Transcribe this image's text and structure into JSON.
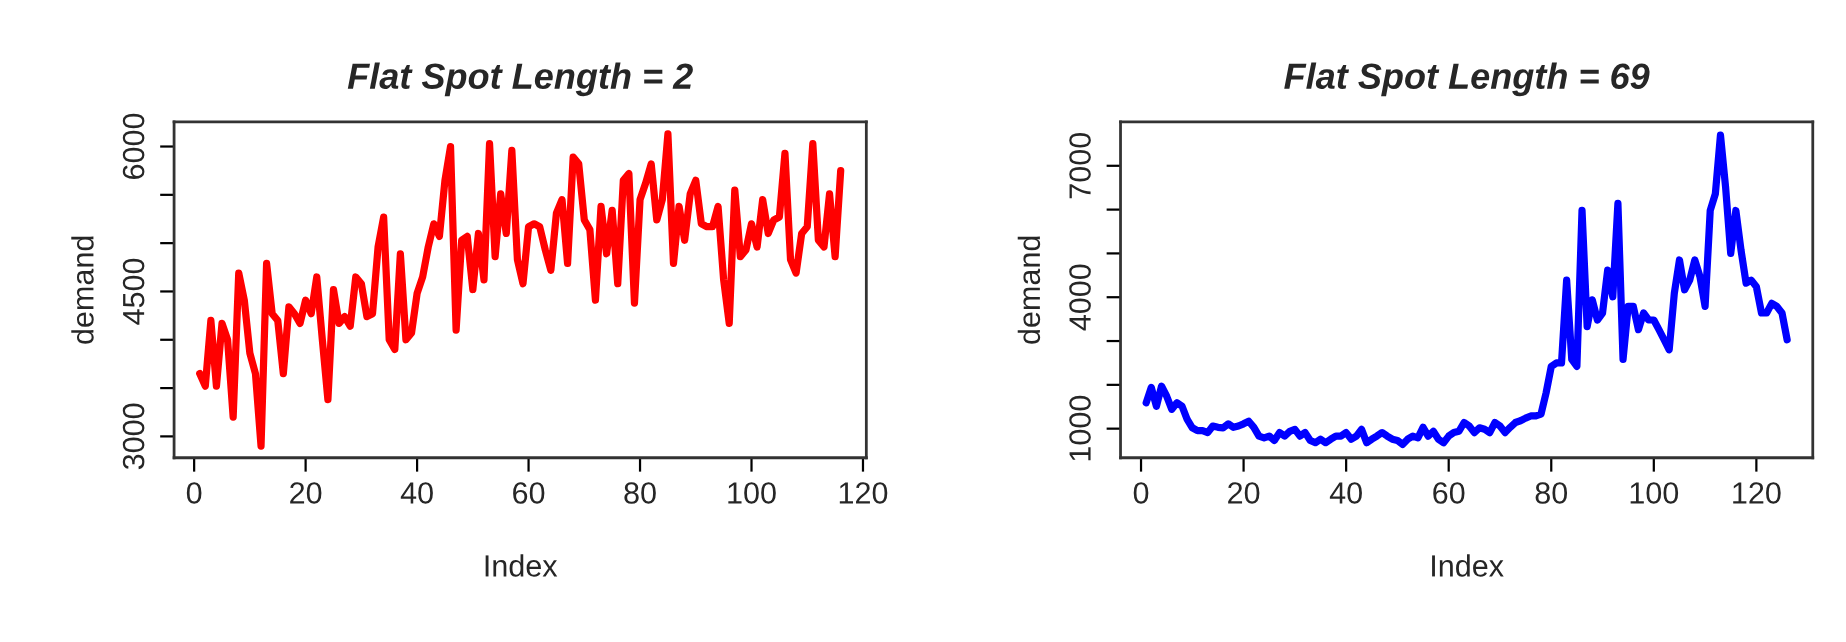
{
  "chart_data": [
    {
      "type": "line",
      "title": "Flat Spot Length = 2",
      "xlabel": "Index",
      "ylabel": "demand",
      "xlim": [
        -3.6,
        120.6
      ],
      "xticks": [
        0,
        20,
        40,
        60,
        80,
        100,
        120
      ],
      "ylim": [
        2779,
        6254
      ],
      "yticks": [
        3000,
        {
          "value": 3500,
          "label": null
        },
        {
          "value": 4000,
          "label": null
        },
        4500,
        {
          "value": 5000,
          "label": null
        },
        {
          "value": 5500,
          "label": null
        },
        6000
      ],
      "grid": false,
      "legend": false,
      "x": [
        1,
        2,
        3,
        4,
        5,
        6,
        7,
        8,
        9,
        10,
        11,
        12,
        13,
        14,
        15,
        16,
        17,
        18,
        19,
        20,
        21,
        22,
        23,
        24,
        25,
        26,
        27,
        28,
        29,
        30,
        31,
        32,
        33,
        34,
        35,
        36,
        37,
        38,
        39,
        40,
        41,
        42,
        43,
        44,
        45,
        46,
        47,
        48,
        49,
        50,
        51,
        52,
        53,
        54,
        55,
        56,
        57,
        58,
        59,
        60,
        61,
        62,
        63,
        64,
        65,
        66,
        67,
        68,
        69,
        70,
        71,
        72,
        73,
        74,
        75,
        76,
        77,
        78,
        79,
        80,
        81,
        82,
        83,
        84,
        85,
        86,
        87,
        88,
        89,
        90,
        91,
        92,
        93,
        94,
        95,
        96,
        97,
        98,
        99,
        100,
        101,
        102,
        103,
        104,
        105,
        106,
        107,
        108,
        109,
        110,
        111,
        112,
        113,
        114,
        115,
        116
      ],
      "series": [
        {
          "color": "#ff0000",
          "values": [
            3650,
            3520,
            4200,
            3520,
            4170,
            4000,
            3200,
            4690,
            4410,
            3860,
            3650,
            2900,
            4790,
            4270,
            4200,
            3650,
            4340,
            4270,
            4170,
            4410,
            4270,
            4650,
            4000,
            3380,
            4520,
            4170,
            4240,
            4140,
            4650,
            4580,
            4240,
            4270,
            4960,
            5270,
            4000,
            3900,
            4890,
            4000,
            4070,
            4480,
            4650,
            4960,
            5200,
            5070,
            5650,
            6000,
            4100,
            5030,
            5070,
            4520,
            5100,
            4620,
            6030,
            4860,
            5510,
            5100,
            5960,
            4830,
            4580,
            5170,
            5200,
            5170,
            4930,
            4720,
            5310,
            5450,
            4790,
            5890,
            5820,
            5240,
            5140,
            4410,
            5380,
            4890,
            5340,
            4580,
            5650,
            5720,
            4380,
            5450,
            5620,
            5820,
            5240,
            5450,
            6130,
            4790,
            5380,
            5030,
            5510,
            5650,
            5200,
            5170,
            5170,
            5380,
            4620,
            4170,
            5550,
            4860,
            4930,
            5200,
            4960,
            5450,
            5100,
            5240,
            5270,
            5930,
            4830,
            4690,
            5100,
            5170,
            6030,
            5030,
            4960,
            5510,
            4860,
            5750
          ]
        }
      ]
    },
    {
      "type": "line",
      "title": "Flat Spot Length = 69",
      "xlabel": "Index",
      "ylabel": "demand",
      "xlim": [
        -4,
        131
      ],
      "xticks": [
        0,
        20,
        40,
        60,
        80,
        100,
        120
      ],
      "ylim": [
        336,
        8000
      ],
      "yticks": [
        1000,
        {
          "value": 2000,
          "label": null
        },
        {
          "value": 3000,
          "label": null
        },
        4000,
        {
          "value": 5000,
          "label": null
        },
        {
          "value": 6000,
          "label": null
        },
        7000
      ],
      "grid": false,
      "legend": false,
      "x": [
        1,
        2,
        3,
        4,
        5,
        6,
        7,
        8,
        9,
        10,
        11,
        12,
        13,
        14,
        15,
        16,
        17,
        18,
        19,
        20,
        21,
        22,
        23,
        24,
        25,
        26,
        27,
        28,
        29,
        30,
        31,
        32,
        33,
        34,
        35,
        36,
        37,
        38,
        39,
        40,
        41,
        42,
        43,
        44,
        45,
        46,
        47,
        48,
        49,
        50,
        51,
        52,
        53,
        54,
        55,
        56,
        57,
        58,
        59,
        60,
        61,
        62,
        63,
        64,
        65,
        66,
        67,
        68,
        69,
        70,
        71,
        72,
        73,
        74,
        75,
        76,
        77,
        78,
        79,
        80,
        81,
        82,
        83,
        84,
        85,
        86,
        87,
        88,
        89,
        90,
        91,
        92,
        93,
        94,
        95,
        96,
        97,
        98,
        99,
        100,
        101,
        102,
        103,
        104,
        105,
        106,
        107,
        108,
        109,
        110,
        111,
        112,
        113,
        114,
        115,
        116,
        117,
        118,
        119,
        120,
        121,
        122,
        123,
        124,
        125,
        126
      ],
      "series": [
        {
          "color": "#0000ff",
          "values": [
            1590,
            1940,
            1510,
            1970,
            1740,
            1440,
            1590,
            1510,
            1210,
            1020,
            955,
            955,
            910,
            1060,
            1030,
            1020,
            1110,
            1030,
            1060,
            1110,
            1170,
            1030,
            830,
            790,
            830,
            730,
            910,
            830,
            940,
            985,
            830,
            910,
            730,
            680,
            760,
            680,
            760,
            830,
            830,
            910,
            760,
            830,
            985,
            680,
            760,
            830,
            910,
            830,
            760,
            730,
            640,
            760,
            830,
            790,
            1030,
            830,
            940,
            760,
            680,
            830,
            910,
            940,
            1140,
            1060,
            910,
            1020,
            985,
            910,
            1140,
            1060,
            910,
            1030,
            1140,
            1180,
            1240,
            1290,
            1290,
            1330,
            1820,
            2420,
            2500,
            2500,
            4390,
            2580,
            2420,
            5980,
            3330,
            3940,
            3480,
            3640,
            4620,
            4010,
            6140,
            2580,
            3790,
            3790,
            3260,
            3640,
            3480,
            3480,
            3260,
            3030,
            2800,
            4090,
            4850,
            4170,
            4390,
            4850,
            4470,
            3790,
            5980,
            6360,
            7700,
            6510,
            5000,
            5980,
            5080,
            4320,
            4390,
            4240,
            3640,
            3640,
            3860,
            3790,
            3640,
            3030
          ]
        }
      ]
    }
  ]
}
